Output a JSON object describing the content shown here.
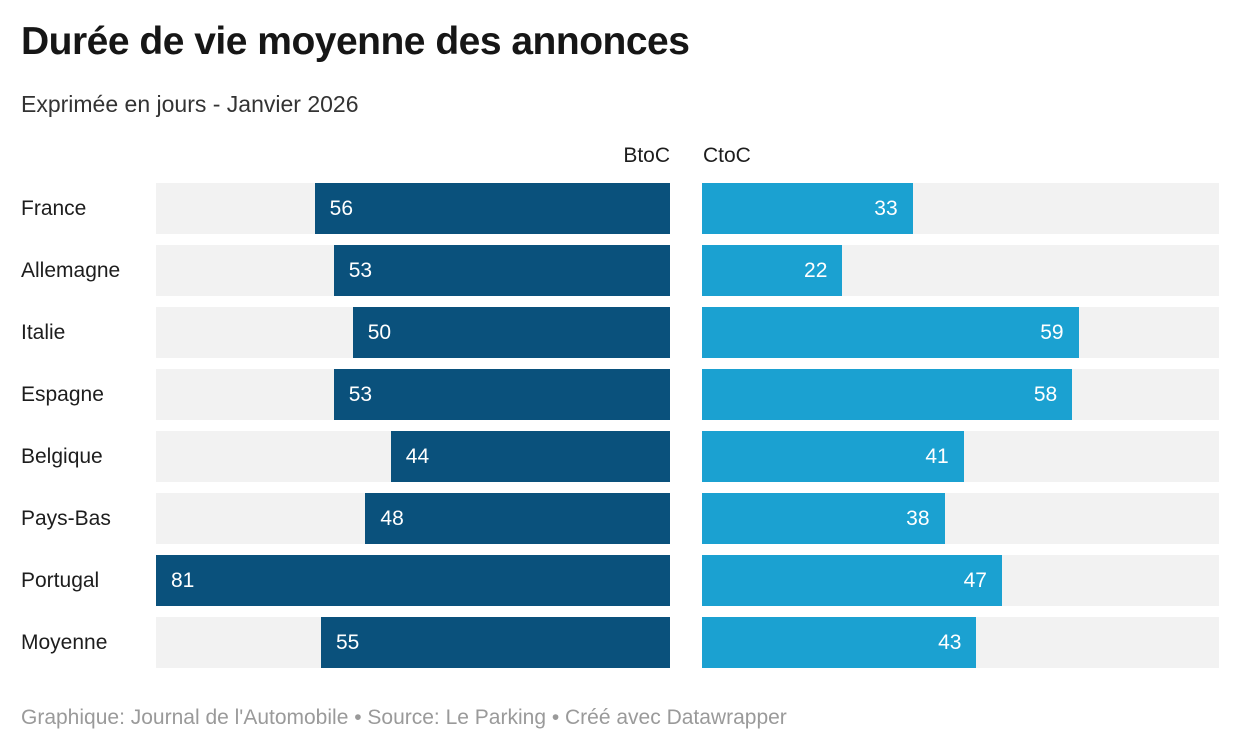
{
  "header": {
    "title": "Durée de vie moyenne des annonces",
    "subtitle": "Exprimée en jours - Janvier 2026"
  },
  "column_headers": {
    "btoc": "BtoC",
    "ctoc": "CtoC"
  },
  "chart_data": {
    "type": "bar",
    "orientation": "horizontal",
    "title": "Durée de vie moyenne des annonces",
    "subtitle": "Exprimée en jours - Janvier 2026",
    "unit": "jours",
    "categories": [
      "France",
      "Allemagne",
      "Italie",
      "Espagne",
      "Belgique",
      "Pays-Bas",
      "Portugal",
      "Moyenne"
    ],
    "series": [
      {
        "name": "BtoC",
        "values": [
          56,
          53,
          50,
          53,
          44,
          48,
          81,
          55
        ],
        "color": "#0a517c",
        "bar_alignment": "right"
      },
      {
        "name": "CtoC",
        "values": [
          33,
          22,
          59,
          58,
          41,
          38,
          47,
          43
        ],
        "color": "#1ba1d1",
        "bar_alignment": "left"
      }
    ],
    "xlim": [
      0,
      81
    ],
    "grid": false,
    "legend_position": "column-headers-top",
    "value_labels": "inside-bar-white",
    "track_color": "#f2f2f2"
  },
  "colors": {
    "btoc_bar": "#0a517c",
    "ctoc_bar": "#1ba1d1",
    "track": "#f2f2f2",
    "title_text": "#161616",
    "label_text": "#1d1d1d",
    "footer_text": "#9a9a9a"
  },
  "footer": {
    "text": "Graphique: Journal de l'Automobile • Source: Le Parking • Créé avec Datawrapper"
  }
}
